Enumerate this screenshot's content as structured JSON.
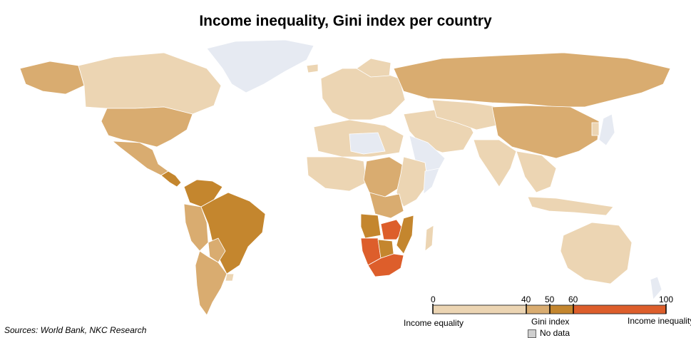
{
  "title": "Income inequality,  Gini index per country",
  "source": "Sources: World Bank, NKC Research",
  "legend": {
    "ticks": [
      "0",
      "40",
      "50",
      "60",
      "100"
    ],
    "left_label": "Income equality",
    "middle_label": "Gini index",
    "right_label": "Income inequality",
    "no_data_label": "No data",
    "colors": {
      "band_0_40": "#ecd5b3",
      "band_40_50": "#d9ac70",
      "band_50_60": "#c4862e",
      "band_60_100": "#dd5e2b",
      "no_data": "#e6eaf2"
    }
  }
}
